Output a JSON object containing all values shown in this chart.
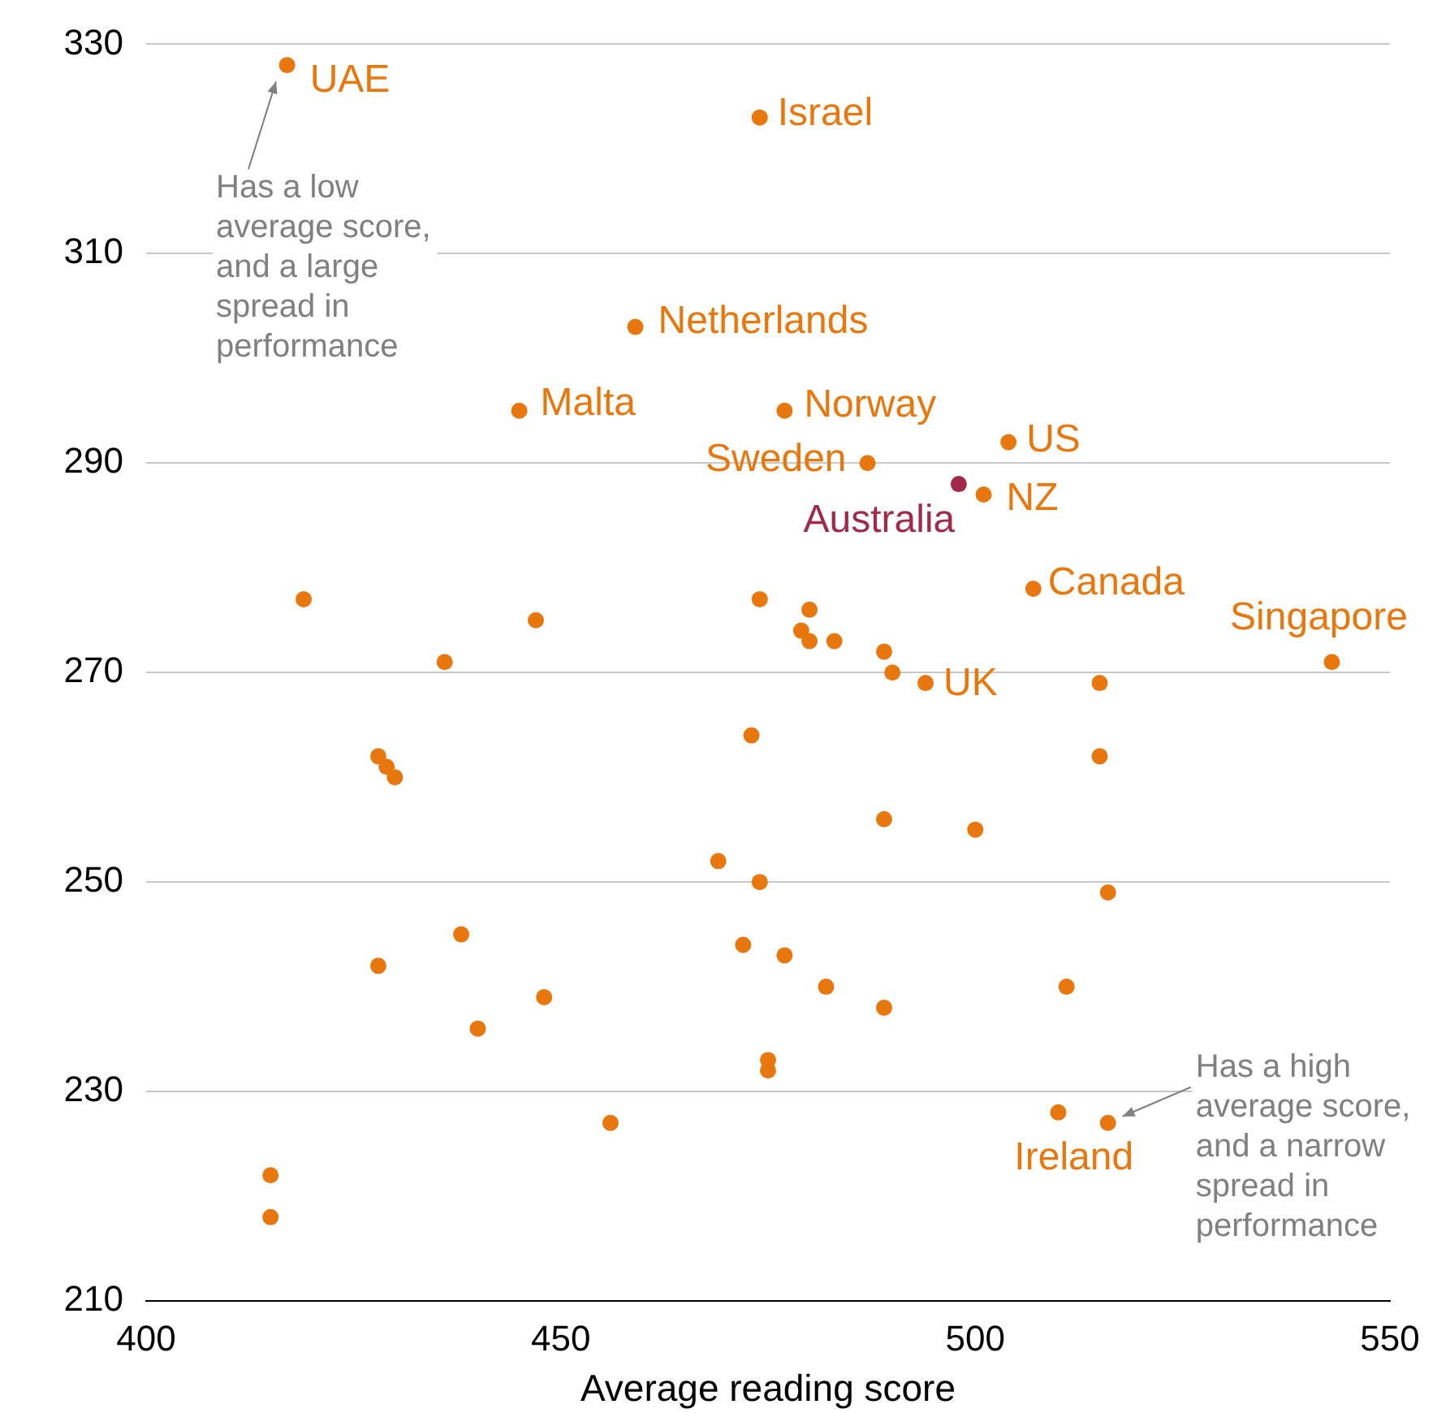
{
  "chart_data": {
    "type": "scatter",
    "xlabel": "Average reading score",
    "x": [
      417,
      474,
      459,
      445,
      477,
      487,
      504,
      498,
      501,
      507,
      543,
      494,
      516,
      419,
      447,
      436,
      428,
      429,
      430,
      428,
      438,
      440,
      448,
      415,
      415,
      456,
      474,
      480,
      479,
      480,
      483,
      489,
      490,
      515,
      473,
      515,
      489,
      500,
      469,
      474,
      516,
      472,
      477,
      482,
      511,
      489,
      475,
      475,
      510
    ],
    "values": [
      328,
      323,
      303,
      295,
      295,
      290,
      292,
      288,
      287,
      278,
      271,
      269,
      227,
      277,
      275,
      271,
      262,
      261,
      260,
      242,
      245,
      236,
      239,
      222,
      218,
      227,
      277,
      276,
      274,
      273,
      273,
      272,
      270,
      269,
      264,
      262,
      256,
      255,
      252,
      250,
      249,
      244,
      243,
      240,
      240,
      238,
      233,
      232,
      228
    ],
    "value_labels": [
      "UAE",
      "Israel",
      "Netherlands",
      "Malta",
      "Norway",
      "Sweden",
      "US",
      "Australia",
      "NZ",
      "Canada",
      "Singapore",
      "UK",
      "Ireland",
      null,
      null,
      null,
      null,
      null,
      null,
      null,
      null,
      null,
      null,
      null,
      null,
      null,
      null,
      null,
      null,
      null,
      null,
      null,
      null,
      null,
      null,
      null,
      null,
      null,
      null,
      null,
      null,
      null,
      null,
      null,
      null,
      null,
      null,
      null,
      null
    ],
    "colors": [
      "#e8770e",
      "#e8770e",
      "#e8770e",
      "#e8770e",
      "#e8770e",
      "#e8770e",
      "#e8770e",
      "#a3294a",
      "#e8770e",
      "#e8770e",
      "#e8770e",
      "#e8770e",
      "#e8770e",
      "#e8770e",
      "#e8770e",
      "#e8770e",
      "#e8770e",
      "#e8770e",
      "#e8770e",
      "#e8770e",
      "#e8770e",
      "#e8770e",
      "#e8770e",
      "#e8770e",
      "#e8770e",
      "#e8770e",
      "#e8770e",
      "#e8770e",
      "#e8770e",
      "#e8770e",
      "#e8770e",
      "#e8770e",
      "#e8770e",
      "#e8770e",
      "#e8770e",
      "#e8770e",
      "#e8770e",
      "#e8770e",
      "#e8770e",
      "#e8770e",
      "#e8770e",
      "#e8770e",
      "#e8770e",
      "#e8770e",
      "#e8770e",
      "#e8770e",
      "#e8770e",
      "#e8770e",
      "#e8770e"
    ],
    "xlim": [
      400,
      550
    ],
    "xticks": [
      400,
      450,
      500,
      550
    ],
    "ylim": [
      210,
      330
    ],
    "yticks": [
      210,
      230,
      250,
      270,
      290,
      310,
      330
    ],
    "grid": "y",
    "legend": false,
    "marker": "circle",
    "annotations": [
      "Has a low\naverage score,\nand a large\nspread in\nperformance",
      {
        "text": "Has a high\naverage score,\nand a narrow\nspread in\nperformance",
        "x": 516,
        "y": 227
      }
    ]
  }
}
